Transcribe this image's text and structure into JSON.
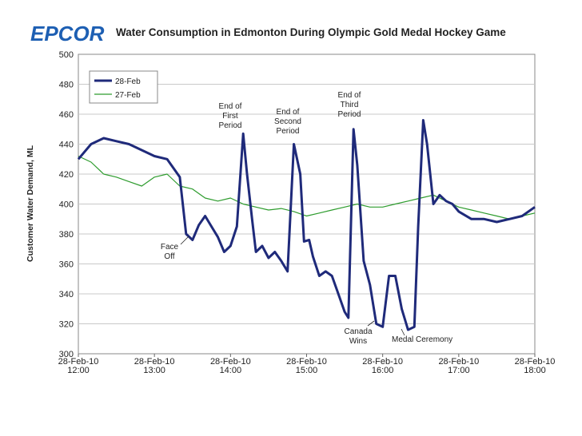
{
  "header": {
    "logo_text": "EPCOR",
    "title": "Water Consumption in Edmonton During Olympic Gold Medal Hockey Game"
  },
  "colors": {
    "series_28feb": "#1f2a7a",
    "series_27feb": "#2e9c2e",
    "logo": "#1d5fb3"
  },
  "chart_data": {
    "type": "line",
    "title": "Water Consumption in Edmonton During Olympic Gold Medal Hockey Game",
    "xlabel": "",
    "ylabel": "Customer Water Demand, ML",
    "ylim": [
      300,
      500
    ],
    "yticks": [
      300,
      320,
      340,
      360,
      380,
      400,
      420,
      440,
      460,
      480,
      500
    ],
    "xlim": [
      "12:00",
      "18:00"
    ],
    "xticks": [
      {
        "time": "12:00",
        "line1": "28-Feb-10",
        "line2": "12:00"
      },
      {
        "time": "13:00",
        "line1": "28-Feb-10",
        "line2": "13:00"
      },
      {
        "time": "14:00",
        "line1": "28-Feb-10",
        "line2": "14:00"
      },
      {
        "time": "15:00",
        "line1": "28-Feb-10",
        "line2": "15:00"
      },
      {
        "time": "16:00",
        "line1": "28-Feb-10",
        "line2": "16:00"
      },
      {
        "time": "17:00",
        "line1": "28-Feb-10",
        "line2": "17:00"
      },
      {
        "time": "18:00",
        "line1": "28-Feb-10",
        "line2": "18:00"
      }
    ],
    "grid": true,
    "legend": "top-left",
    "series": [
      {
        "name": "28-Feb",
        "x": [
          "12:00",
          "12:10",
          "12:20",
          "12:30",
          "12:40",
          "12:50",
          "13:00",
          "13:10",
          "13:20",
          "13:25",
          "13:30",
          "13:35",
          "13:40",
          "13:45",
          "13:50",
          "13:55",
          "14:00",
          "14:05",
          "14:10",
          "14:13",
          "14:17",
          "14:20",
          "14:25",
          "14:30",
          "14:35",
          "14:40",
          "14:45",
          "14:50",
          "14:55",
          "14:58",
          "15:02",
          "15:05",
          "15:10",
          "15:15",
          "15:20",
          "15:25",
          "15:30",
          "15:33",
          "15:37",
          "15:40",
          "15:45",
          "15:50",
          "15:55",
          "16:00",
          "16:05",
          "16:10",
          "16:15",
          "16:20",
          "16:25",
          "16:28",
          "16:32",
          "16:35",
          "16:40",
          "16:45",
          "16:50",
          "16:55",
          "17:00",
          "17:10",
          "17:20",
          "17:30",
          "17:40",
          "17:50",
          "18:00"
        ],
        "y": [
          430,
          440,
          444,
          442,
          440,
          436,
          432,
          430,
          418,
          380,
          376,
          386,
          392,
          385,
          378,
          368,
          372,
          385,
          447,
          420,
          390,
          368,
          372,
          364,
          368,
          362,
          355,
          440,
          420,
          375,
          376,
          365,
          352,
          355,
          352,
          340,
          328,
          324,
          450,
          426,
          362,
          346,
          320,
          318,
          352,
          352,
          330,
          316,
          318,
          385,
          456,
          440,
          400,
          406,
          402,
          400,
          395,
          390,
          390,
          388,
          390,
          392,
          398
        ]
      },
      {
        "name": "27-Feb",
        "x": [
          "12:00",
          "12:10",
          "12:20",
          "12:30",
          "12:40",
          "12:50",
          "13:00",
          "13:10",
          "13:20",
          "13:30",
          "13:40",
          "13:50",
          "14:00",
          "14:10",
          "14:20",
          "14:30",
          "14:40",
          "14:50",
          "15:00",
          "15:10",
          "15:20",
          "15:30",
          "15:40",
          "15:50",
          "16:00",
          "16:10",
          "16:20",
          "16:30",
          "16:40",
          "16:50",
          "17:00",
          "17:10",
          "17:20",
          "17:30",
          "17:40",
          "17:50",
          "18:00"
        ],
        "y": [
          432,
          428,
          420,
          418,
          415,
          412,
          418,
          420,
          412,
          410,
          404,
          402,
          404,
          400,
          398,
          396,
          397,
          395,
          392,
          394,
          396,
          398,
          400,
          398,
          398,
          400,
          402,
          404,
          406,
          402,
          398,
          396,
          394,
          392,
          390,
          392,
          394
        ]
      }
    ],
    "annotations": [
      {
        "lines": [
          "Face",
          "Off"
        ]
      },
      {
        "lines": [
          "End of",
          "First",
          "Period"
        ]
      },
      {
        "lines": [
          "End of",
          "Second",
          "Period"
        ]
      },
      {
        "lines": [
          "End of",
          "Third",
          "Period"
        ]
      },
      {
        "lines": [
          "Canada",
          "Wins"
        ]
      },
      {
        "lines": [
          "Medal Ceremony"
        ]
      }
    ]
  }
}
